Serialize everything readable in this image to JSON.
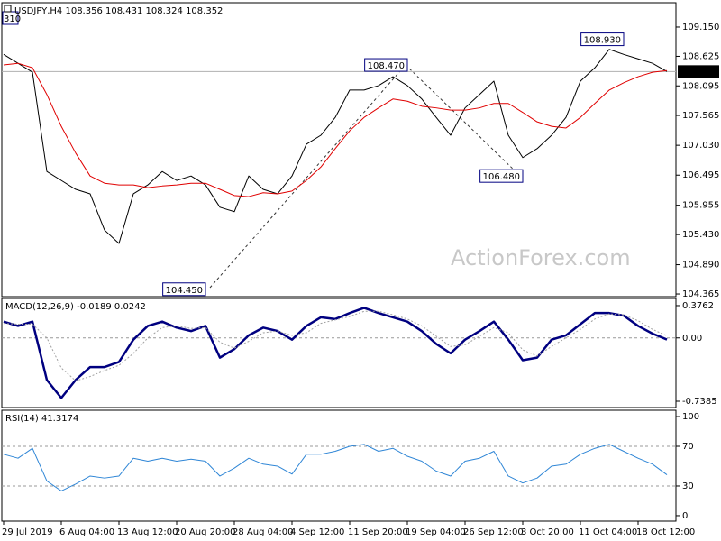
{
  "chart_data": [
    {
      "type": "line",
      "title": "USDJPY,H4 108.356 108.431 108.324 108.352",
      "note": "310",
      "watermark": "ActionForex.com",
      "categories": [
        "29 Jul 2019",
        null,
        null,
        null,
        "6 Aug 04:00",
        null,
        null,
        null,
        "13 Aug 12:00",
        null,
        null,
        null,
        "20 Aug 20:00",
        null,
        null,
        null,
        "28 Aug 04:00",
        null,
        null,
        null,
        "4 Sep 12:00",
        null,
        null,
        null,
        "11 Sep 20:00",
        null,
        null,
        null,
        "19 Sep 04:00",
        null,
        null,
        null,
        "26 Sep 12:00",
        null,
        null,
        null,
        "3 Oct 20:00",
        null,
        null,
        null,
        "11 Oct 04:00",
        null,
        null,
        null,
        "18 Oct 12:00",
        null,
        null
      ],
      "series": [
        {
          "color": "#000000",
          "width": 1,
          "values": [
            108.66,
            108.5,
            108.34,
            106.56,
            106.4,
            106.24,
            106.16,
            105.51,
            105.27,
            106.16,
            106.32,
            106.56,
            106.4,
            106.48,
            106.32,
            105.92,
            105.84,
            106.48,
            106.24,
            106.16,
            106.48,
            107.05,
            107.21,
            107.53,
            108.02,
            108.02,
            108.1,
            108.26,
            108.1,
            107.86,
            107.53,
            107.21,
            107.7,
            107.94,
            108.18,
            107.21,
            106.81,
            106.97,
            107.21,
            107.53,
            108.18,
            108.42,
            108.75,
            108.66,
            108.58,
            108.5,
            108.352
          ]
        },
        {
          "color": "#e00000",
          "width": 1,
          "values": [
            108.47,
            108.5,
            108.42,
            107.94,
            107.37,
            106.89,
            106.48,
            106.35,
            106.32,
            106.32,
            106.27,
            106.3,
            106.32,
            106.35,
            106.35,
            106.24,
            106.13,
            106.11,
            106.18,
            106.16,
            106.21,
            106.4,
            106.64,
            106.97,
            107.29,
            107.53,
            107.7,
            107.86,
            107.82,
            107.73,
            107.7,
            107.66,
            107.66,
            107.7,
            107.78,
            107.78,
            107.62,
            107.45,
            107.37,
            107.34,
            107.53,
            107.78,
            108.02,
            108.15,
            108.26,
            108.34,
            108.37
          ]
        }
      ],
      "annotations": [
        {
          "index": 14,
          "value": 104.45,
          "label": "104.450"
        },
        {
          "index": 28,
          "value": 108.47,
          "label": "108.470"
        },
        {
          "index": 36,
          "value": 106.48,
          "label": "106.480"
        },
        {
          "index": 43,
          "value": 108.93,
          "label": "108.930"
        }
      ],
      "last_price": 108.352,
      "ylim": [
        104.317,
        109.586
      ],
      "yticks": [
        {
          "value": 109.15,
          "label": "109.150"
        },
        108.625,
        108.095,
        107.565,
        {
          "value": 107.03,
          "label": "107.030"
        },
        106.495,
        105.955,
        {
          "value": 105.43,
          "label": "105.430"
        },
        {
          "value": 104.89,
          "label": "104.890"
        },
        104.365
      ]
    },
    {
      "type": "line",
      "title": "MACD(12,26,9) -0.0189 0.0242",
      "series": [
        {
          "color": "#000080",
          "width": 2.5,
          "values": [
            0.19,
            0.14,
            0.19,
            -0.49,
            -0.7,
            -0.49,
            -0.34,
            -0.34,
            -0.28,
            -0.02,
            0.14,
            0.19,
            0.12,
            0.08,
            0.14,
            -0.23,
            -0.13,
            0.03,
            0.12,
            0.08,
            -0.02,
            0.14,
            0.24,
            0.22,
            0.29,
            0.35,
            0.29,
            0.24,
            0.19,
            0.08,
            -0.07,
            -0.18,
            -0.02,
            0.08,
            0.19,
            -0.02,
            -0.26,
            -0.23,
            -0.02,
            0.03,
            0.16,
            0.29,
            0.29,
            0.26,
            0.14,
            0.05,
            -0.0189
          ]
        },
        {
          "color": "#a0a0a0",
          "width": 1,
          "dash": true,
          "values": [
            0.17,
            0.16,
            0.16,
            0.0,
            -0.35,
            -0.5,
            -0.45,
            -0.38,
            -0.32,
            -0.18,
            0.0,
            0.12,
            0.14,
            0.11,
            0.12,
            -0.05,
            -0.12,
            -0.04,
            0.06,
            0.08,
            0.03,
            0.06,
            0.17,
            0.21,
            0.25,
            0.31,
            0.31,
            0.27,
            0.22,
            0.14,
            0.02,
            -0.1,
            -0.08,
            0.02,
            0.12,
            0.06,
            -0.14,
            -0.21,
            -0.1,
            0.0,
            0.1,
            0.22,
            0.28,
            0.27,
            0.2,
            0.1,
            0.0242
          ]
        }
      ],
      "levels": [
        0
      ],
      "ylim": [
        -0.812,
        0.46
      ],
      "yticks": [
        0.3762,
        {
          "value": 0,
          "label": "0.00"
        },
        -0.7385
      ]
    },
    {
      "type": "line",
      "title": "RSI(14) 41.3174",
      "series": [
        {
          "color": "#2f86d6",
          "width": 1,
          "values": [
            62,
            58,
            68,
            35,
            25,
            32,
            40,
            38,
            40,
            58,
            55,
            58,
            55,
            57,
            55,
            40,
            48,
            58,
            52,
            50,
            42,
            62,
            62,
            65,
            70,
            72,
            65,
            68,
            60,
            55,
            45,
            40,
            55,
            58,
            65,
            40,
            33,
            38,
            50,
            52,
            62,
            68,
            72,
            65,
            58,
            52,
            41.3174
          ]
        }
      ],
      "levels": [
        70,
        30
      ],
      "ylim": [
        -5.5,
        106.4
      ],
      "yticks": [
        100,
        70,
        30,
        0
      ]
    }
  ]
}
